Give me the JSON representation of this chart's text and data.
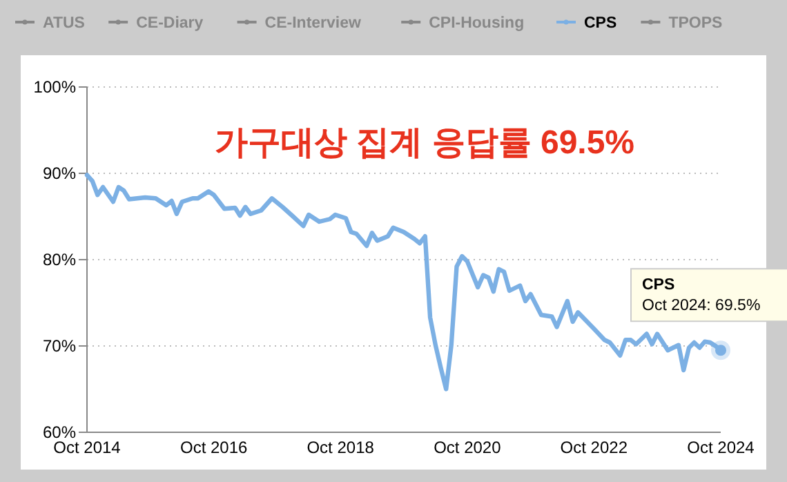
{
  "chart_data": {
    "type": "line",
    "title": "가구대상 집계 응답률 69.5%",
    "x": [
      "2014-10",
      "2014-11",
      "2014-12",
      "2015-01",
      "2015-03",
      "2015-04",
      "2015-05",
      "2015-06",
      "2015-09",
      "2015-11",
      "2016-01",
      "2016-02",
      "2016-03",
      "2016-04",
      "2016-06",
      "2016-07",
      "2016-09",
      "2016-10",
      "2016-12",
      "2017-02",
      "2017-03",
      "2017-04",
      "2017-05",
      "2017-07",
      "2017-09",
      "2017-11",
      "2018-01",
      "2018-03",
      "2018-04",
      "2018-06",
      "2018-08",
      "2018-09",
      "2018-11",
      "2018-12",
      "2019-01",
      "2019-03",
      "2019-04",
      "2019-05",
      "2019-07",
      "2019-08",
      "2019-10",
      "2019-12",
      "2020-01",
      "2020-02",
      "2020-03",
      "2020-04",
      "2020-05",
      "2020-06",
      "2020-07",
      "2020-08",
      "2020-09",
      "2020-10",
      "2020-12",
      "2021-01",
      "2021-02",
      "2021-03",
      "2021-04",
      "2021-05",
      "2021-06",
      "2021-08",
      "2021-09",
      "2021-10",
      "2021-12",
      "2022-02",
      "2022-03",
      "2022-05",
      "2022-06",
      "2022-07",
      "2022-10",
      "2022-12",
      "2023-01",
      "2023-03",
      "2023-04",
      "2023-05",
      "2023-06",
      "2023-08",
      "2023-09",
      "2023-10",
      "2023-12",
      "2024-02",
      "2024-03",
      "2024-04",
      "2024-05",
      "2024-06",
      "2024-07",
      "2024-08",
      "2024-09",
      "2024-10"
    ],
    "series": [
      {
        "name": "ATUS",
        "color": "#888888",
        "values": [
          null,
          null,
          null,
          null,
          null,
          null,
          null,
          null,
          null,
          null,
          null,
          null,
          null,
          null,
          null,
          null,
          null,
          null,
          null,
          null,
          null,
          null,
          null,
          null,
          null,
          null,
          null,
          null,
          null,
          null,
          null,
          null,
          null,
          null,
          null,
          null,
          null,
          null,
          null,
          null,
          null,
          null,
          null,
          null,
          null,
          null,
          null,
          null,
          null,
          null,
          null,
          null,
          null,
          null,
          null,
          null,
          null,
          null,
          null,
          null,
          null,
          null,
          null,
          null,
          null,
          null,
          null,
          null,
          null,
          null,
          null,
          null,
          null,
          null,
          null,
          null,
          null,
          null,
          null,
          null,
          null,
          null,
          null,
          null,
          null,
          null,
          null,
          null
        ]
      },
      {
        "name": "CE-Diary",
        "color": "#888888",
        "values": [
          null,
          null,
          null,
          null,
          null,
          null,
          null,
          null,
          null,
          null,
          null,
          null,
          null,
          null,
          null,
          null,
          null,
          null,
          null,
          null,
          null,
          null,
          null,
          null,
          null,
          null,
          null,
          null,
          null,
          null,
          null,
          null,
          null,
          null,
          null,
          null,
          null,
          null,
          null,
          null,
          null,
          null,
          null,
          null,
          null,
          null,
          null,
          null,
          null,
          null,
          null,
          null,
          null,
          null,
          null,
          null,
          null,
          null,
          null,
          null,
          null,
          null,
          null,
          null,
          null,
          null,
          null,
          null,
          null,
          null,
          null,
          null,
          null,
          null,
          null,
          null,
          null,
          null,
          null,
          null,
          null,
          null,
          null,
          null,
          null,
          null,
          null,
          null
        ]
      },
      {
        "name": "CE-Interview",
        "color": "#888888",
        "values": [
          null,
          null,
          null,
          null,
          null,
          null,
          null,
          null,
          null,
          null,
          null,
          null,
          null,
          null,
          null,
          null,
          null,
          null,
          null,
          null,
          null,
          null,
          null,
          null,
          null,
          null,
          null,
          null,
          null,
          null,
          null,
          null,
          null,
          null,
          null,
          null,
          null,
          null,
          null,
          null,
          null,
          null,
          null,
          null,
          null,
          null,
          null,
          null,
          null,
          null,
          null,
          null,
          null,
          null,
          null,
          null,
          null,
          null,
          null,
          null,
          null,
          null,
          null,
          null,
          null,
          null,
          null,
          null,
          null,
          null,
          null,
          null,
          null,
          null,
          null,
          null,
          null,
          null,
          null,
          null,
          null,
          null,
          null,
          null,
          null,
          null,
          null,
          null
        ]
      },
      {
        "name": "CPI-Housing",
        "color": "#888888",
        "values": [
          null,
          null,
          null,
          null,
          null,
          null,
          null,
          null,
          null,
          null,
          null,
          null,
          null,
          null,
          null,
          null,
          null,
          null,
          null,
          null,
          null,
          null,
          null,
          null,
          null,
          null,
          null,
          null,
          null,
          null,
          null,
          null,
          null,
          null,
          null,
          null,
          null,
          null,
          null,
          null,
          null,
          null,
          null,
          null,
          null,
          null,
          null,
          null,
          null,
          null,
          null,
          null,
          null,
          null,
          null,
          null,
          null,
          null,
          null,
          null,
          null,
          null,
          null,
          null,
          null,
          null,
          null,
          null,
          null,
          null,
          null,
          null,
          null,
          null,
          null,
          null,
          null,
          null,
          null,
          null,
          null,
          null,
          null,
          null,
          null,
          null,
          null,
          null
        ]
      },
      {
        "name": "CPS",
        "color": "#7cb0e4",
        "values": [
          89.8,
          89.1,
          87.5,
          88.4,
          86.7,
          88.4,
          88.0,
          87.0,
          87.2,
          87.1,
          86.3,
          86.8,
          85.3,
          86.7,
          87.1,
          87.1,
          87.9,
          87.5,
          85.9,
          86.0,
          85.1,
          86.1,
          85.3,
          85.7,
          87.1,
          86.1,
          85.0,
          83.9,
          85.2,
          84.4,
          84.7,
          85.2,
          84.8,
          83.2,
          83.0,
          81.6,
          83.1,
          82.2,
          82.7,
          83.7,
          83.2,
          82.4,
          81.9,
          82.7,
          73.3,
          70.1,
          67.5,
          65.0,
          70.1,
          79.2,
          80.4,
          79.8,
          76.8,
          78.2,
          77.9,
          76.3,
          78.9,
          78.6,
          76.4,
          77.0,
          75.2,
          76.0,
          73.6,
          73.4,
          72.2,
          75.2,
          72.8,
          73.9,
          72.0,
          70.7,
          70.4,
          68.9,
          70.7,
          70.7,
          70.2,
          71.4,
          70.2,
          71.4,
          69.5,
          70.1,
          67.2,
          69.8,
          70.4,
          69.8,
          70.5,
          70.4,
          70.0,
          69.5
        ]
      },
      {
        "name": "TPOPS",
        "color": "#888888",
        "values": [
          null,
          null,
          null,
          null,
          null,
          null,
          null,
          null,
          null,
          null,
          null,
          null,
          null,
          null,
          null,
          null,
          null,
          null,
          null,
          null,
          null,
          null,
          null,
          null,
          null,
          null,
          null,
          null,
          null,
          null,
          null,
          null,
          null,
          null,
          null,
          null,
          null,
          null,
          null,
          null,
          null,
          null,
          null,
          null,
          null,
          null,
          null,
          null,
          null,
          null,
          null,
          null,
          null,
          null,
          null,
          null,
          null,
          null,
          null,
          null,
          null,
          null,
          null,
          null,
          null,
          null,
          null,
          null,
          null,
          null,
          null,
          null,
          null,
          null,
          null,
          null,
          null,
          null,
          null,
          null,
          null,
          null,
          null,
          null,
          null,
          null,
          null,
          null
        ]
      }
    ],
    "xlim": [
      "2014-10",
      "2024-10"
    ],
    "xticks": [
      {
        "value": "2014-10",
        "label": "Oct 2014"
      },
      {
        "value": "2016-10",
        "label": "Oct 2016"
      },
      {
        "value": "2018-10",
        "label": "Oct 2018"
      },
      {
        "value": "2020-10",
        "label": "Oct 2020"
      },
      {
        "value": "2022-10",
        "label": "Oct 2022"
      },
      {
        "value": "2024-10",
        "label": "Oct 2024"
      }
    ],
    "ylim": [
      60,
      100
    ],
    "yticks": [
      {
        "value": 60,
        "label": "60%"
      },
      {
        "value": 70,
        "label": "70%"
      },
      {
        "value": 80,
        "label": "80%"
      },
      {
        "value": 90,
        "label": "90%"
      },
      {
        "value": 100,
        "label": "100%"
      }
    ],
    "grid": "y",
    "legend": "top",
    "annotations": [
      {
        "text": "CPS\nOct 2024: 69.5%",
        "x": "2024-10",
        "y": 69.5
      }
    ]
  }
}
